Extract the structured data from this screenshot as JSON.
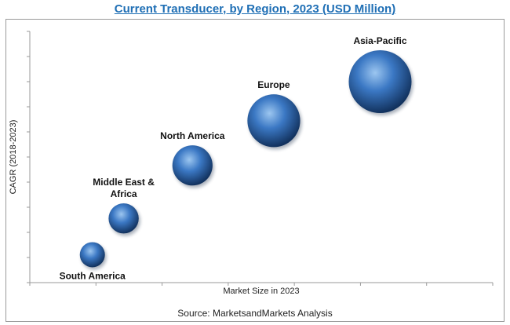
{
  "title": "Current Transducer, by Region, 2023 (USD Million)",
  "source": "Source: MarketsandMarkets Analysis",
  "colors": {
    "bubble": "#3b78c4",
    "bubble_light": "#9cc6f0",
    "bubble_dark": "#12325e",
    "title": "#1f6fb5",
    "axis": "#9a9a9a"
  },
  "chart_data": {
    "type": "scatter",
    "title": "Current Transducer, by Region, 2023 (USD Million)",
    "xlabel": "Market Size in 2023",
    "ylabel": "CAGR (2018-2023)",
    "grid": false,
    "legend": "none",
    "points": [
      {
        "label": "South America",
        "x": 1.0,
        "y": 1.0,
        "size": 1.0
      },
      {
        "label": "Middle East & Africa",
        "x": 1.5,
        "y": 2.3,
        "size": 1.2
      },
      {
        "label": "North America",
        "x": 2.6,
        "y": 4.2,
        "size": 1.6
      },
      {
        "label": "Europe",
        "x": 3.9,
        "y": 5.8,
        "size": 2.1
      },
      {
        "label": "Asia-Pacific",
        "x": 5.6,
        "y": 7.2,
        "size": 2.5
      }
    ],
    "xlim": [
      0,
      7.4
    ],
    "ylim": [
      0,
      9
    ]
  }
}
